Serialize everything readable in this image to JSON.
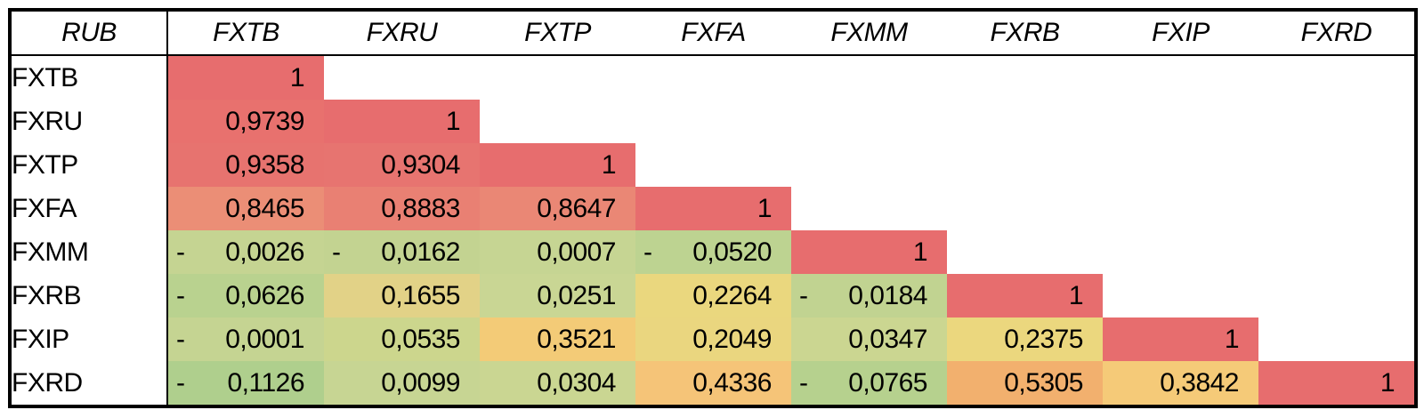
{
  "table": {
    "corner_label": "RUB",
    "columns": [
      "FXTB",
      "FXRU",
      "FXTP",
      "FXFA",
      "FXMM",
      "FXRB",
      "FXIP",
      "FXRD"
    ],
    "rows": [
      {
        "label": "FXTB",
        "cells": [
          {
            "display": "1",
            "neg": false,
            "value": 1,
            "bg": "#E76D6E"
          }
        ]
      },
      {
        "label": "FXRU",
        "cells": [
          {
            "display": "0,9739",
            "neg": false,
            "value": 0.9739,
            "bg": "#E8716E"
          },
          {
            "display": "1",
            "neg": false,
            "value": 1,
            "bg": "#E76D6E"
          }
        ]
      },
      {
        "label": "FXTP",
        "cells": [
          {
            "display": "0,9358",
            "neg": false,
            "value": 0.9358,
            "bg": "#E7736F"
          },
          {
            "display": "0,9304",
            "neg": false,
            "value": 0.9304,
            "bg": "#E77470"
          },
          {
            "display": "1",
            "neg": false,
            "value": 1,
            "bg": "#E76D6E"
          }
        ]
      },
      {
        "label": "FXFA",
        "cells": [
          {
            "display": "0,8465",
            "neg": false,
            "value": 0.8465,
            "bg": "#EB8E76"
          },
          {
            "display": "0,8883",
            "neg": false,
            "value": 0.8883,
            "bg": "#E98073"
          },
          {
            "display": "0,8647",
            "neg": false,
            "value": 0.8647,
            "bg": "#EA8775"
          },
          {
            "display": "1",
            "neg": false,
            "value": 1,
            "bg": "#E76D6E"
          }
        ]
      },
      {
        "label": "FXMM",
        "cells": [
          {
            "display": "0,0026",
            "neg": true,
            "value": -0.0026,
            "bg": "#C5D492"
          },
          {
            "display": "0,0162",
            "neg": true,
            "value": -0.0162,
            "bg": "#C3D391"
          },
          {
            "display": "0,0007",
            "neg": false,
            "value": 0.0007,
            "bg": "#C6D593"
          },
          {
            "display": "0,0520",
            "neg": true,
            "value": -0.052,
            "bg": "#BDD391"
          },
          {
            "display": "1",
            "neg": false,
            "value": 1,
            "bg": "#E76D6E"
          }
        ]
      },
      {
        "label": "FXRB",
        "cells": [
          {
            "display": "0,0626",
            "neg": true,
            "value": -0.0626,
            "bg": "#B9D28F"
          },
          {
            "display": "0,1655",
            "neg": false,
            "value": 0.1655,
            "bg": "#E2D287"
          },
          {
            "display": "0,0251",
            "neg": false,
            "value": 0.0251,
            "bg": "#C9D694"
          },
          {
            "display": "0,2264",
            "neg": false,
            "value": 0.2264,
            "bg": "#EAD77E"
          },
          {
            "display": "0,0184",
            "neg": true,
            "value": -0.0184,
            "bg": "#C1D391"
          },
          {
            "display": "1",
            "neg": false,
            "value": 1,
            "bg": "#E76D6E"
          }
        ]
      },
      {
        "label": "FXIP",
        "cells": [
          {
            "display": "0,0001",
            "neg": true,
            "value": -0.0001,
            "bg": "#C5D492"
          },
          {
            "display": "0,0535",
            "neg": false,
            "value": 0.0535,
            "bg": "#CCD68D"
          },
          {
            "display": "0,3521",
            "neg": false,
            "value": 0.3521,
            "bg": "#F3CB77"
          },
          {
            "display": "0,2049",
            "neg": false,
            "value": 0.2049,
            "bg": "#EAD67F"
          },
          {
            "display": "0,0347",
            "neg": false,
            "value": 0.0347,
            "bg": "#CBD691"
          },
          {
            "display": "0,2375",
            "neg": false,
            "value": 0.2375,
            "bg": "#EBD77E"
          },
          {
            "display": "1",
            "neg": false,
            "value": 1,
            "bg": "#E76D6E"
          }
        ]
      },
      {
        "label": "FXRD",
        "cells": [
          {
            "display": "0,1126",
            "neg": true,
            "value": -0.1126,
            "bg": "#AFCF8D"
          },
          {
            "display": "0,0099",
            "neg": false,
            "value": 0.0099,
            "bg": "#C7D593"
          },
          {
            "display": "0,0304",
            "neg": false,
            "value": 0.0304,
            "bg": "#CAD692"
          },
          {
            "display": "0,4336",
            "neg": false,
            "value": 0.4336,
            "bg": "#F5C478"
          },
          {
            "display": "0,0765",
            "neg": true,
            "value": -0.0765,
            "bg": "#B6D18E"
          },
          {
            "display": "0,5305",
            "neg": false,
            "value": 0.5305,
            "bg": "#F2B06E"
          },
          {
            "display": "0,3842",
            "neg": false,
            "value": 0.3842,
            "bg": "#F5CA78"
          },
          {
            "display": "1",
            "neg": false,
            "value": 1,
            "bg": "#E76D6E"
          }
        ]
      }
    ],
    "decimal_separator": ",",
    "negative_format": "minus sign left-aligned, number right-aligned"
  },
  "colors": {
    "high_red": "#E76D6E",
    "mid_yellow": "#EAD77E",
    "low_green": "#AFCF8D",
    "border_black": "#000000",
    "background_white": "#FFFFFF"
  },
  "chart_data": {
    "type": "heatmap",
    "title": "RUB",
    "subtitle": "Lower-triangular correlation matrix of FinEx ETFs (RUB)",
    "rows": [
      "FXTB",
      "FXRU",
      "FXTP",
      "FXFA",
      "FXMM",
      "FXRB",
      "FXIP",
      "FXRD"
    ],
    "columns": [
      "FXTB",
      "FXRU",
      "FXTP",
      "FXFA",
      "FXMM",
      "FXRB",
      "FXIP",
      "FXRD"
    ],
    "matrix": [
      [
        1,
        null,
        null,
        null,
        null,
        null,
        null,
        null
      ],
      [
        0.9739,
        1,
        null,
        null,
        null,
        null,
        null,
        null
      ],
      [
        0.9358,
        0.9304,
        1,
        null,
        null,
        null,
        null,
        null
      ],
      [
        0.8465,
        0.8883,
        0.8647,
        1,
        null,
        null,
        null,
        null
      ],
      [
        -0.0026,
        -0.0162,
        0.0007,
        -0.052,
        1,
        null,
        null,
        null
      ],
      [
        -0.0626,
        0.1655,
        0.0251,
        0.2264,
        -0.0184,
        1,
        null,
        null
      ],
      [
        -0.0001,
        0.0535,
        0.3521,
        0.2049,
        0.0347,
        0.2375,
        1,
        null
      ],
      [
        -0.1126,
        0.0099,
        0.0304,
        0.4336,
        -0.0765,
        0.5305,
        0.3842,
        1
      ]
    ],
    "value_range": [
      -0.1126,
      1
    ],
    "colormap": "green (low) -> yellow (mid) -> orange -> red (high)",
    "legend": "none",
    "grid": "outer border + header separator + label-column separator only"
  }
}
